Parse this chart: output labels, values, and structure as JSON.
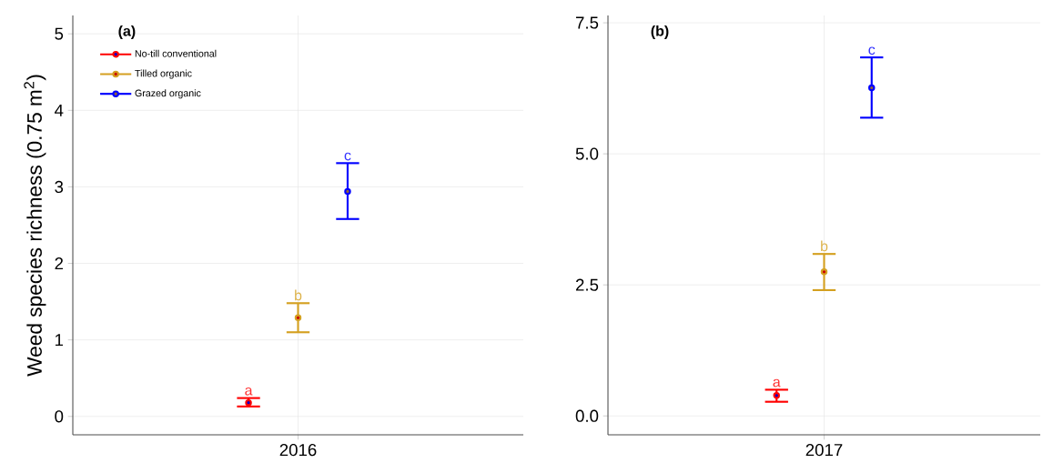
{
  "chart_data": [
    {
      "type": "scatter",
      "title": "(a)",
      "ylabel": "Weed species richness (0.75 m$^{2}$)",
      "categories": [
        "2016"
      ],
      "ylim": [
        -0.24,
        5.24
      ],
      "yticks": [
        0,
        1,
        2,
        3,
        4,
        5
      ],
      "grid": true,
      "legend": "top left",
      "marker": "circle",
      "series": [
        {
          "name": "No-till conventional",
          "color": "#ff0000",
          "values": [
            0.18
          ],
          "errors": [
            [
              0.13,
              0.24
            ]
          ],
          "value_labels": [
            "a"
          ]
        },
        {
          "name": "Tilled organic",
          "color": "#d4a020",
          "values": [
            1.29
          ],
          "errors": [
            [
              1.1,
              1.48
            ]
          ],
          "value_labels": [
            "b"
          ]
        },
        {
          "name": "Grazed organic",
          "color": "#0000ff",
          "values": [
            2.94
          ],
          "errors": [
            [
              2.58,
              3.31
            ]
          ],
          "value_labels": [
            "c"
          ]
        }
      ]
    },
    {
      "type": "scatter",
      "title": "(b)",
      "categories": [
        "2017"
      ],
      "ylim": [
        -0.36,
        7.64
      ],
      "yticks": [
        {
          "value": 0,
          "label": "0.0"
        },
        2.5,
        {
          "value": 5,
          "label": "5.0"
        },
        7.5
      ],
      "grid": true,
      "legend": false,
      "marker": "circle",
      "series": [
        {
          "color": "#ff0000",
          "values": [
            0.39
          ],
          "errors": [
            [
              0.27,
              0.5
            ]
          ],
          "value_labels": [
            "a"
          ]
        },
        {
          "color": "#d4a020",
          "values": [
            2.75
          ],
          "errors": [
            [
              2.4,
              3.09
            ]
          ],
          "value_labels": [
            "b"
          ]
        },
        {
          "color": "#0000ff",
          "values": [
            6.26
          ],
          "errors": [
            [
              5.69,
              6.84
            ]
          ],
          "value_labels": [
            "c"
          ]
        }
      ]
    }
  ]
}
